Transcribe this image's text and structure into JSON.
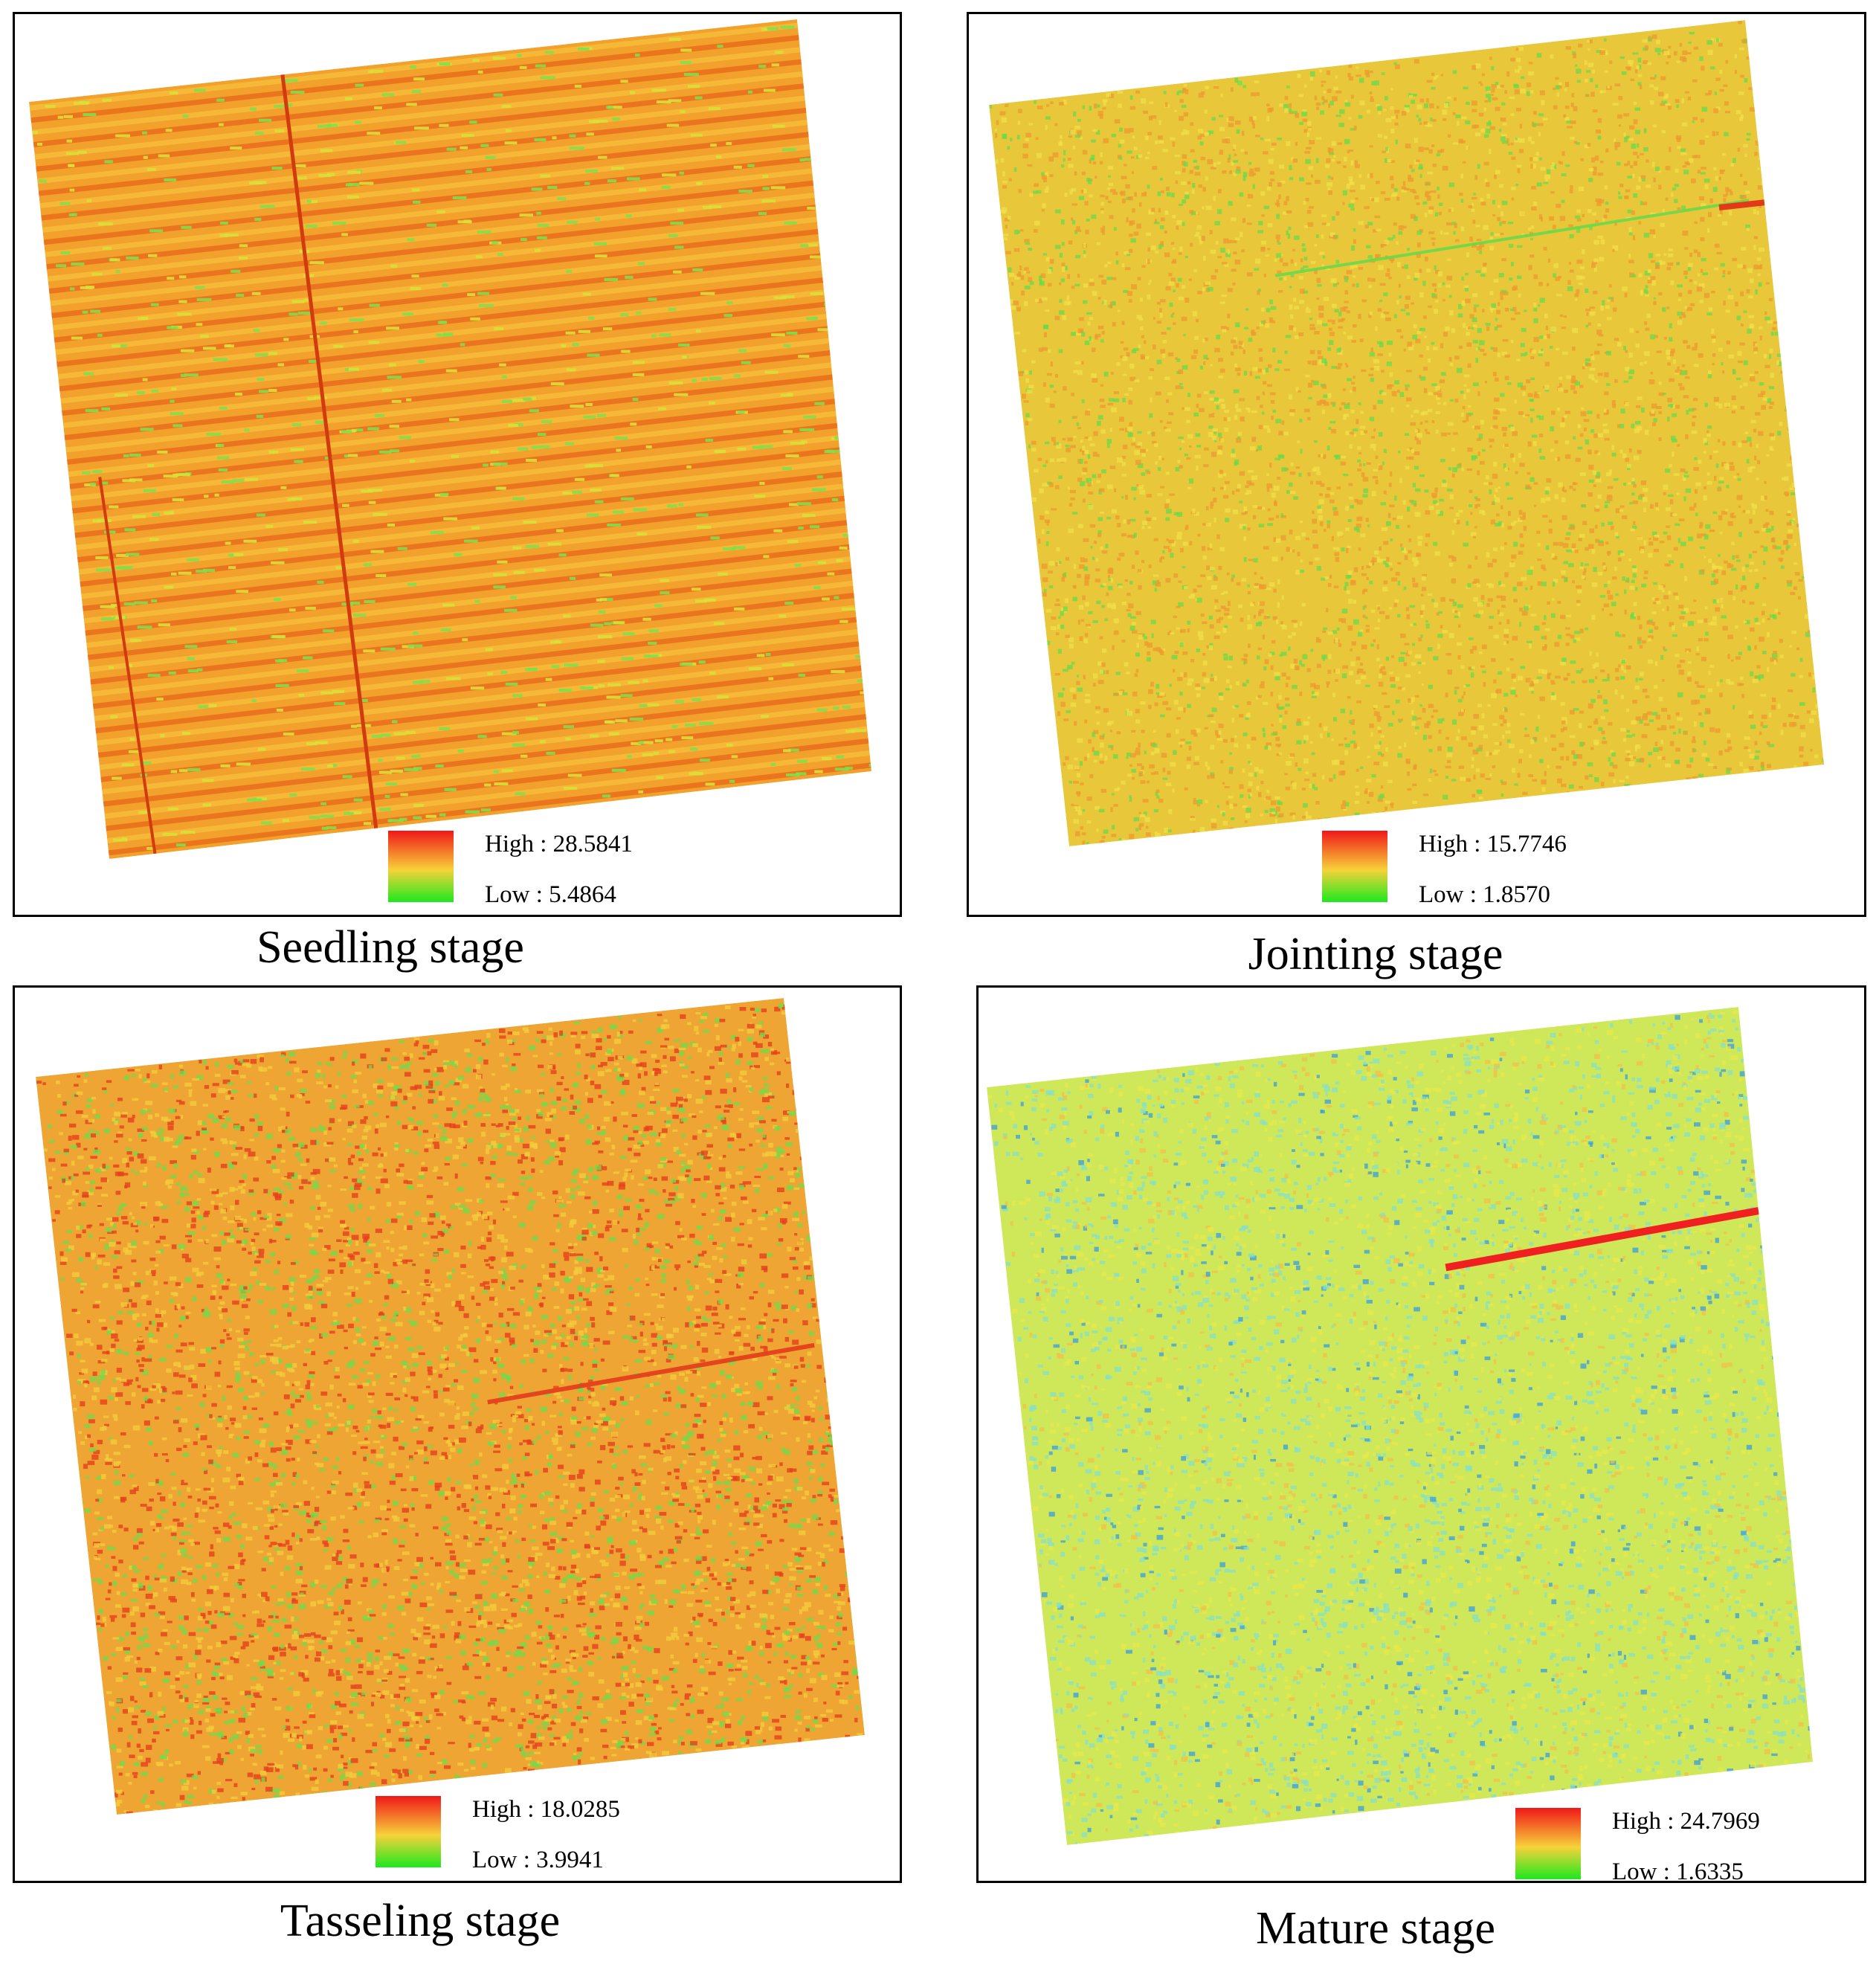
{
  "figure": {
    "panels": [
      {
        "caption": "Seedling stage",
        "legend": {
          "high_label": "High : 28.5841",
          "low_label": "Low  : 5.4864"
        },
        "palette": "red-yellow-green",
        "colors": {
          "base": "#f2a12c",
          "stripe_dark": "#ea6e1c",
          "stripe_green": "#7fe04a",
          "line": "#d23a10"
        }
      },
      {
        "caption": "Jointing stage",
        "legend": {
          "high_label": "High : 15.7746",
          "low_label": "Low  : 1.8570"
        },
        "palette": "red-yellow-green",
        "colors": {
          "base": "#e8c83a",
          "speck_orange": "#ee9a2e",
          "speck_green": "#6ad94a",
          "accent": "#e23a18"
        }
      },
      {
        "caption": "Tasseling stage",
        "legend": {
          "high_label": "High : 18.0285",
          "low_label": "Low  : 3.9941"
        },
        "palette": "red-yellow-green",
        "colors": {
          "base": "#eea533",
          "speck_red": "#e5401c",
          "speck_green": "#74d94a",
          "accent": "#e5401c"
        }
      },
      {
        "caption": "Mature stage",
        "legend": {
          "high_label": "High : 24.7969",
          "low_label": "Low  : 1.6335"
        },
        "palette": "red-yellow-green",
        "colors": {
          "base": "#cfe85a",
          "speck_cyan": "#86e0c8",
          "speck_blue": "#3a9ee0",
          "accent": "#f02020"
        }
      }
    ],
    "legend_colors": {
      "high": "#f01818",
      "mid": "#f7d23a",
      "low": "#1ee81e"
    }
  }
}
